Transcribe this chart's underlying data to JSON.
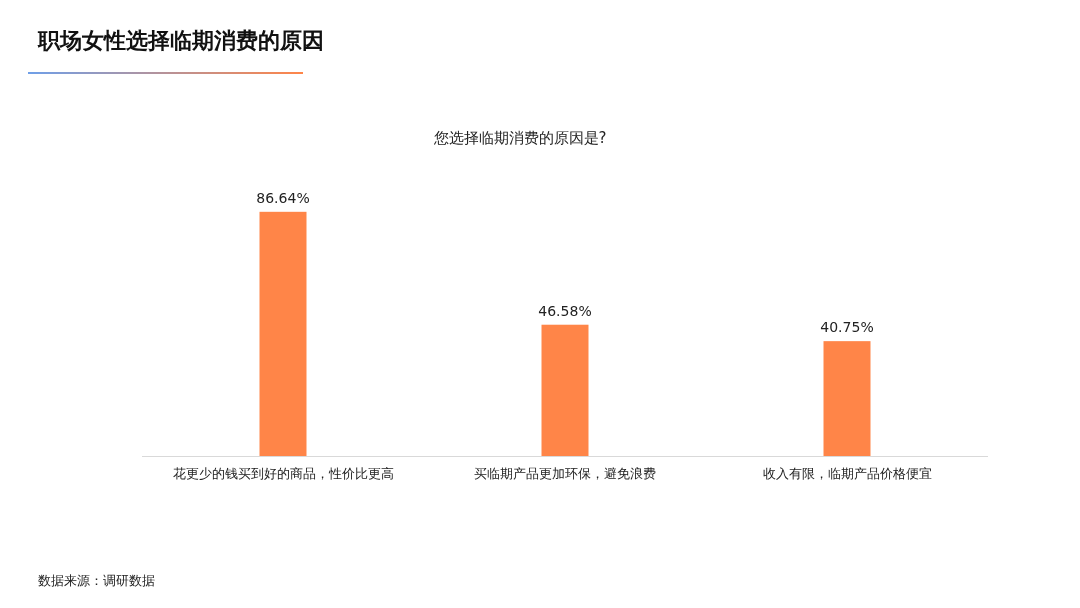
{
  "chart_data": {
    "type": "bar",
    "title": "职场女性选择临期消费的原因",
    "subtitle": "您选择临期消费的原因是?",
    "categories": [
      "花更少的钱买到好的商品，性价比更高",
      "买临期产品更加环保，避免浪费",
      "收入有限，临期产品价格便宜"
    ],
    "values": [
      86.64,
      46.58,
      40.75
    ],
    "value_labels": [
      "86.64%",
      "46.58%",
      "40.75%"
    ],
    "color": "#ff8548",
    "annotations": [
      "数据来源：调研数据"
    ]
  }
}
